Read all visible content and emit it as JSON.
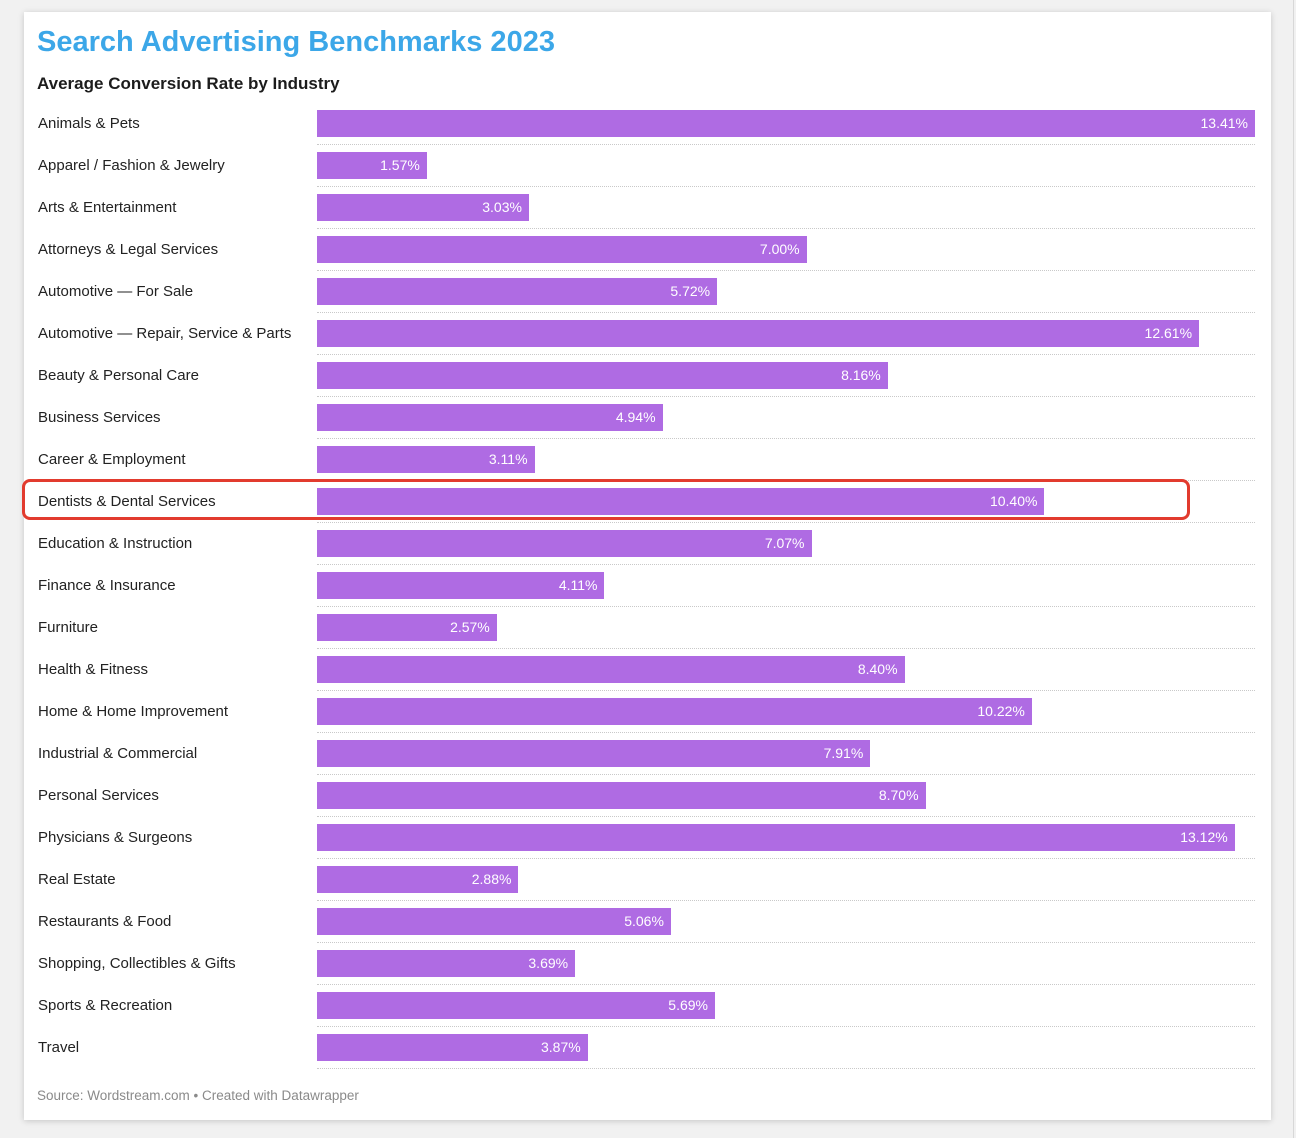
{
  "title": "Search Advertising Benchmarks 2023",
  "subtitle": "Average Conversion Rate by Industry",
  "source": "Source: Wordstream.com • Created with Datawrapper",
  "colors": {
    "bar": "#af6be3",
    "title": "#3ca7e8",
    "highlight": "#e23b2e"
  },
  "chart_data": {
    "type": "bar",
    "orientation": "horizontal",
    "value_format": "percent",
    "xlim": [
      0,
      13.41
    ],
    "highlighted_category": "Dentists & Dental Services",
    "categories": [
      "Animals & Pets",
      "Apparel / Fashion & Jewelry",
      "Arts & Entertainment",
      "Attorneys & Legal Services",
      "Automotive — For Sale",
      "Automotive — Repair, Service & Parts",
      "Beauty & Personal Care",
      "Business Services",
      "Career & Employment",
      "Dentists & Dental Services",
      "Education & Instruction",
      "Finance & Insurance",
      "Furniture",
      "Health & Fitness",
      "Home & Home Improvement",
      "Industrial & Commercial",
      "Personal Services",
      "Physicians & Surgeons",
      "Real Estate",
      "Restaurants & Food",
      "Shopping, Collectibles & Gifts",
      "Sports & Recreation",
      "Travel"
    ],
    "values": [
      13.41,
      1.57,
      3.03,
      7.0,
      5.72,
      12.61,
      8.16,
      4.94,
      3.11,
      10.4,
      7.07,
      4.11,
      2.57,
      8.4,
      10.22,
      7.91,
      8.7,
      13.12,
      2.88,
      5.06,
      3.69,
      5.69,
      3.87
    ],
    "labels": [
      "13.41%",
      "1.57%",
      "3.03%",
      "7.00%",
      "5.72%",
      "12.61%",
      "8.16%",
      "4.94%",
      "3.11%",
      "10.40%",
      "7.07%",
      "4.11%",
      "2.57%",
      "8.40%",
      "10.22%",
      "7.91%",
      "8.70%",
      "13.12%",
      "2.88%",
      "5.06%",
      "3.69%",
      "5.69%",
      "3.87%"
    ]
  }
}
